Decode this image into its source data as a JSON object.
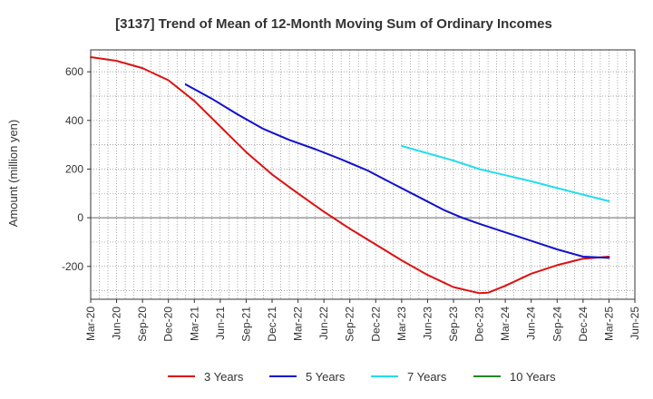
{
  "chart_data": {
    "type": "line",
    "title": "[3137]  Trend of Mean of 12-Month Moving Sum of Ordinary Incomes",
    "xlabel": "",
    "ylabel": "Amount (million yen)",
    "ylim": [
      -335,
      690
    ],
    "yticks": [
      600,
      400,
      200,
      0,
      -200
    ],
    "ytick_labels": [
      "600",
      "400",
      "200",
      "0",
      "-200"
    ],
    "x_categories": [
      "Mar-20",
      "Jun-20",
      "Sep-20",
      "Dec-20",
      "Mar-21",
      "Jun-21",
      "Sep-21",
      "Dec-21",
      "Mar-22",
      "Jun-22",
      "Sep-22",
      "Dec-22",
      "Mar-23",
      "Jun-23",
      "Sep-23",
      "Dec-23",
      "Mar-24",
      "Jun-24",
      "Sep-24",
      "Dec-24",
      "Mar-25",
      "Jun-25"
    ],
    "x_range_months": [
      0,
      63
    ],
    "legend_position": "bottom",
    "series": [
      {
        "name": "3 Years",
        "color": "#dd1111",
        "points": [
          [
            0,
            660
          ],
          [
            3,
            645
          ],
          [
            6,
            615
          ],
          [
            9,
            565
          ],
          [
            12,
            480
          ],
          [
            15,
            375
          ],
          [
            18,
            270
          ],
          [
            21,
            178
          ],
          [
            24,
            100
          ],
          [
            27,
            25
          ],
          [
            30,
            -45
          ],
          [
            33,
            -110
          ],
          [
            36,
            -175
          ],
          [
            39,
            -235
          ],
          [
            42,
            -285
          ],
          [
            45,
            -310
          ],
          [
            46,
            -308
          ],
          [
            48,
            -280
          ],
          [
            51,
            -230
          ],
          [
            54,
            -195
          ],
          [
            57,
            -168
          ],
          [
            60,
            -160
          ]
        ]
      },
      {
        "name": "5 Years",
        "color": "#1111cc",
        "points": [
          [
            11,
            548
          ],
          [
            14,
            490
          ],
          [
            17,
            425
          ],
          [
            20,
            365
          ],
          [
            23,
            320
          ],
          [
            26,
            282
          ],
          [
            29,
            240
          ],
          [
            32,
            195
          ],
          [
            35,
            140
          ],
          [
            38,
            85
          ],
          [
            41,
            30
          ],
          [
            43,
            0
          ],
          [
            45,
            -25
          ],
          [
            48,
            -60
          ],
          [
            51,
            -95
          ],
          [
            54,
            -130
          ],
          [
            57,
            -160
          ],
          [
            60,
            -165
          ]
        ]
      },
      {
        "name": "7 Years",
        "color": "#22ddee",
        "points": [
          [
            36,
            295
          ],
          [
            39,
            265
          ],
          [
            42,
            235
          ],
          [
            45,
            200
          ],
          [
            48,
            175
          ],
          [
            51,
            150
          ],
          [
            54,
            122
          ],
          [
            57,
            95
          ],
          [
            60,
            68
          ]
        ]
      },
      {
        "name": "10 Years",
        "color": "#228822",
        "points": []
      }
    ]
  }
}
